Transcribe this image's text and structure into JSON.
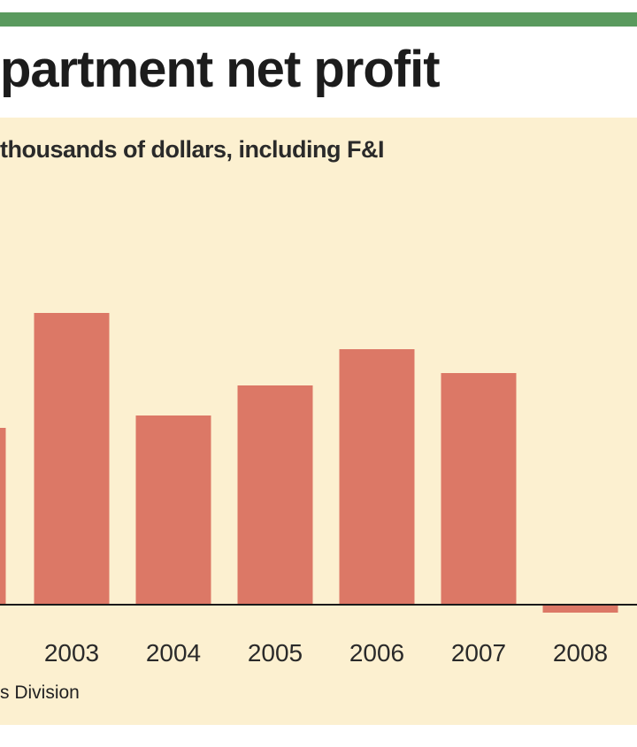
{
  "header": {
    "title": "partment net profit",
    "subtitle": "thousands of dollars, including F&I",
    "source": "s Division"
  },
  "colors": {
    "accent_bar": "#5a9a5e",
    "background": "#fcf0d0",
    "bar": "#dc7866",
    "axis": "#1a1a1a"
  },
  "chart_data": {
    "type": "bar",
    "title": "partment net profit",
    "subtitle": "thousands of dollars, including F&I",
    "categories": [
      "",
      "2003",
      "2004",
      "2005",
      "2006",
      "2007",
      "2008"
    ],
    "values": [
      200,
      330,
      214,
      248,
      289,
      262,
      -8
    ],
    "ylim": [
      -20,
      450
    ],
    "grid": false,
    "legend": "none"
  }
}
